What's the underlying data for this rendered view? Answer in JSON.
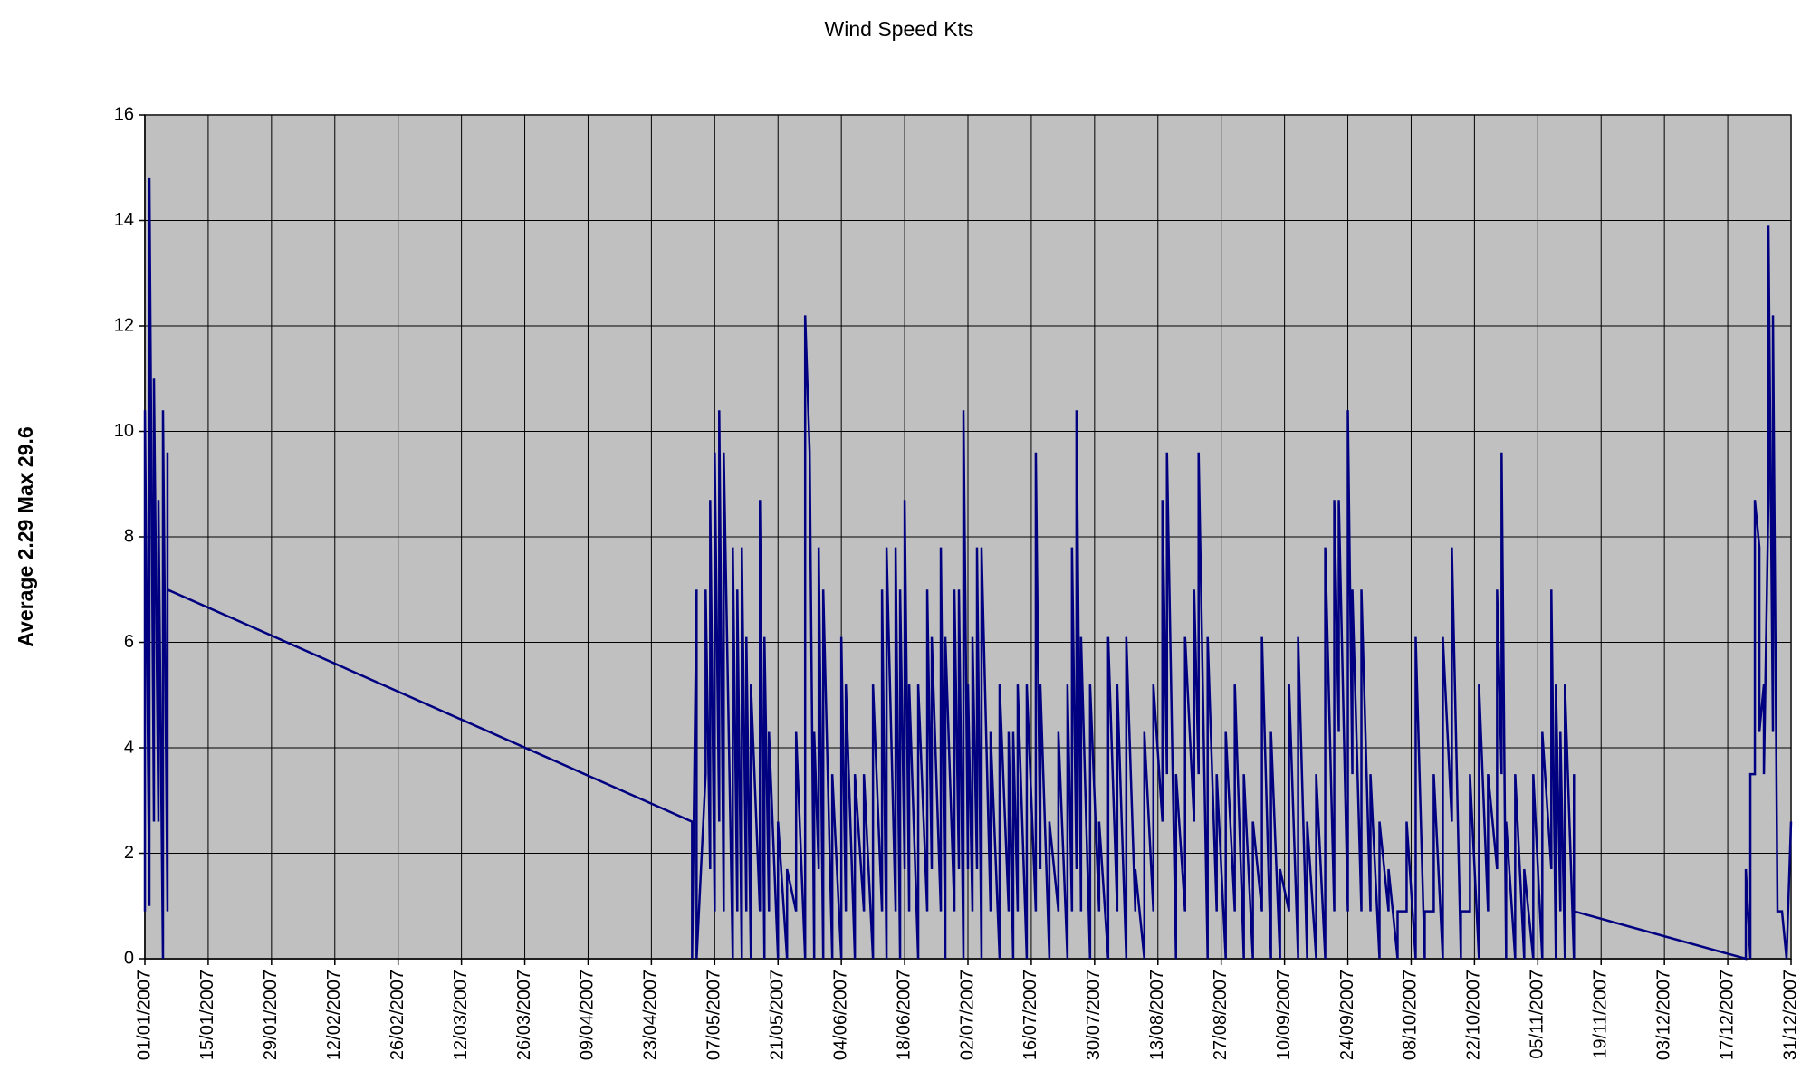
{
  "chart_data": {
    "type": "line",
    "title": "Wind Speed Kts",
    "y_label": "Average 2.29 Max 29.6",
    "xlim": [
      "01/01/2007",
      "31/12/2007"
    ],
    "xticks": [
      "01/01/2007",
      "15/01/2007",
      "29/01/2007",
      "12/02/2007",
      "26/02/2007",
      "12/03/2007",
      "26/03/2007",
      "09/04/2007",
      "23/04/2007",
      "07/05/2007",
      "21/05/2007",
      "04/06/2007",
      "18/06/2007",
      "02/07/2007",
      "16/07/2007",
      "30/07/2007",
      "13/08/2007",
      "27/08/2007",
      "10/09/2007",
      "24/09/2007",
      "08/10/2007",
      "22/10/2007",
      "05/11/2007",
      "19/11/2007",
      "03/12/2007",
      "17/12/2007",
      "31/12/2007"
    ],
    "ylim": [
      0,
      16
    ],
    "yticks": [
      0,
      2,
      4,
      6,
      8,
      10,
      12,
      14,
      16
    ],
    "grid": true,
    "background": "#c0c0c0",
    "x": [
      "01/01/2007",
      "01/01/2007",
      "02/01/2007",
      "02/01/2007",
      "03/01/2007",
      "03/01/2007",
      "04/01/2007",
      "04/01/2007",
      "05/01/2007",
      "05/01/2007",
      "06/01/2007",
      "06/01/2007",
      "06/01/2007",
      "02/05/2007",
      "02/05/2007",
      "03/05/2007",
      "03/05/2007",
      "05/05/2007",
      "05/05/2007",
      "06/05/2007",
      "06/05/2007",
      "07/05/2007",
      "07/05/2007",
      "08/05/2007",
      "08/05/2007",
      "09/05/2007",
      "09/05/2007",
      "11/05/2007",
      "11/05/2007",
      "12/05/2007",
      "12/05/2007",
      "13/05/2007",
      "13/05/2007",
      "14/05/2007",
      "14/05/2007",
      "15/05/2007",
      "15/05/2007",
      "17/05/2007",
      "17/05/2007",
      "18/05/2007",
      "18/05/2007",
      "19/05/2007",
      "19/05/2007",
      "21/05/2007",
      "21/05/2007",
      "23/05/2007",
      "23/05/2007",
      "25/05/2007",
      "25/05/2007",
      "27/05/2007",
      "27/05/2007",
      "28/05/2007",
      "29/05/2007",
      "29/05/2007",
      "30/05/2007",
      "30/05/2007",
      "31/05/2007",
      "31/05/2007",
      "02/06/2007",
      "02/06/2007",
      "04/06/2007",
      "04/06/2007",
      "05/06/2007",
      "05/06/2007",
      "07/06/2007",
      "07/06/2007",
      "09/06/2007",
      "09/06/2007",
      "11/06/2007",
      "11/06/2007",
      "13/06/2007",
      "13/06/2007",
      "14/06/2007",
      "14/06/2007",
      "16/06/2007",
      "16/06/2007",
      "17/06/2007",
      "17/06/2007",
      "18/06/2007",
      "18/06/2007",
      "19/06/2007",
      "19/06/2007",
      "21/06/2007",
      "21/06/2007",
      "23/06/2007",
      "23/06/2007",
      "24/06/2007",
      "24/06/2007",
      "26/06/2007",
      "26/06/2007",
      "27/06/2007",
      "27/06/2007",
      "29/06/2007",
      "29/06/2007",
      "30/06/2007",
      "30/06/2007",
      "01/07/2007",
      "01/07/2007",
      "02/07/2007",
      "02/07/2007",
      "03/07/2007",
      "03/07/2007",
      "04/07/2007",
      "04/07/2007",
      "05/07/2007",
      "05/07/2007",
      "07/07/2007",
      "07/07/2007",
      "09/07/2007",
      "09/07/2007",
      "11/07/2007",
      "11/07/2007",
      "12/07/2007",
      "12/07/2007",
      "13/07/2007",
      "13/07/2007",
      "15/07/2007",
      "15/07/2007",
      "17/07/2007",
      "17/07/2007",
      "18/07/2007",
      "18/07/2007",
      "20/07/2007",
      "20/07/2007",
      "22/07/2007",
      "22/07/2007",
      "24/07/2007",
      "24/07/2007",
      "25/07/2007",
      "25/07/2007",
      "26/07/2007",
      "26/07/2007",
      "27/07/2007",
      "27/07/2007",
      "29/07/2007",
      "29/07/2007",
      "31/07/2007",
      "31/07/2007",
      "02/08/2007",
      "02/08/2007",
      "04/08/2007",
      "04/08/2007",
      "06/08/2007",
      "06/08/2007",
      "08/08/2007",
      "08/08/2007",
      "10/08/2007",
      "10/08/2007",
      "12/08/2007",
      "12/08/2007",
      "14/08/2007",
      "14/08/2007",
      "15/08/2007",
      "15/08/2007",
      "17/08/2007",
      "17/08/2007",
      "19/08/2007",
      "19/08/2007",
      "21/08/2007",
      "21/08/2007",
      "22/08/2007",
      "22/08/2007",
      "24/08/2007",
      "24/08/2007",
      "26/08/2007",
      "26/08/2007",
      "28/08/2007",
      "28/08/2007",
      "30/08/2007",
      "30/08/2007",
      "01/09/2007",
      "01/09/2007",
      "03/09/2007",
      "03/09/2007",
      "05/09/2007",
      "05/09/2007",
      "07/09/2007",
      "07/09/2007",
      "09/09/2007",
      "09/09/2007",
      "11/09/2007",
      "11/09/2007",
      "13/09/2007",
      "13/09/2007",
      "15/09/2007",
      "15/09/2007",
      "17/09/2007",
      "17/09/2007",
      "19/09/2007",
      "19/09/2007",
      "21/09/2007",
      "21/09/2007",
      "22/09/2007",
      "22/09/2007",
      "24/09/2007",
      "24/09/2007",
      "25/09/2007",
      "25/09/2007",
      "27/09/2007",
      "27/09/2007",
      "29/09/2007",
      "29/09/2007",
      "01/10/2007",
      "01/10/2007",
      "03/10/2007",
      "03/10/2007",
      "05/10/2007",
      "05/10/2007",
      "07/10/2007",
      "07/10/2007",
      "09/10/2007",
      "09/10/2007",
      "11/10/2007",
      "11/10/2007",
      "13/10/2007",
      "13/10/2007",
      "15/10/2007",
      "15/10/2007",
      "17/10/2007",
      "17/10/2007",
      "19/10/2007",
      "19/10/2007",
      "21/10/2007",
      "21/10/2007",
      "23/10/2007",
      "23/10/2007",
      "25/10/2007",
      "25/10/2007",
      "27/10/2007",
      "27/10/2007",
      "28/10/2007",
      "28/10/2007",
      "29/10/2007",
      "29/10/2007",
      "31/10/2007",
      "31/10/2007",
      "02/11/2007",
      "02/11/2007",
      "04/11/2007",
      "04/11/2007",
      "06/11/2007",
      "06/11/2007",
      "08/11/2007",
      "08/11/2007",
      "09/11/2007",
      "09/11/2007",
      "10/11/2007",
      "10/11/2007",
      "11/11/2007",
      "11/11/2007",
      "13/11/2007",
      "13/11/2007",
      "13/11/2007",
      "21/12/2007",
      "21/12/2007",
      "22/12/2007",
      "22/12/2007",
      "23/12/2007",
      "23/12/2007",
      "24/12/2007",
      "24/12/2007",
      "25/12/2007",
      "25/12/2007",
      "26/12/2007",
      "26/12/2007",
      "27/12/2007",
      "27/12/2007",
      "28/12/2007",
      "29/12/2007",
      "30/12/2007",
      "31/12/2007"
    ],
    "series": [
      {
        "name": "Wind Speed",
        "color": "#000080",
        "values": [
          0.9,
          10.4,
          1.0,
          14.8,
          2.6,
          11.0,
          2.6,
          8.7,
          0,
          10.4,
          0.9,
          9.6,
          7.0,
          2.6,
          0,
          7.0,
          0,
          3.5,
          7.0,
          1.7,
          8.7,
          0.9,
          9.6,
          2.6,
          10.4,
          0.9,
          9.6,
          0,
          7.8,
          0.9,
          7.0,
          0,
          7.8,
          0.9,
          6.1,
          0,
          5.2,
          0.9,
          8.7,
          0,
          6.1,
          0.9,
          4.3,
          0,
          2.6,
          0,
          1.7,
          0.9,
          4.3,
          0,
          12.2,
          9.6,
          0,
          4.3,
          1.7,
          7.8,
          0,
          7.0,
          0,
          3.5,
          0,
          6.1,
          0.9,
          5.2,
          0,
          3.5,
          0.9,
          3.5,
          0,
          5.2,
          0.9,
          7.0,
          0,
          7.8,
          0.9,
          7.8,
          0,
          7.0,
          1.7,
          8.7,
          0.9,
          5.2,
          0,
          5.2,
          0.9,
          7.0,
          1.7,
          6.1,
          0.9,
          7.8,
          0,
          6.1,
          0.9,
          7.0,
          1.7,
          7.0,
          0,
          10.4,
          1.7,
          5.2,
          0.9,
          6.1,
          1.7,
          7.8,
          0,
          7.8,
          0.9,
          4.3,
          0,
          5.2,
          0.9,
          4.3,
          0,
          4.3,
          0.9,
          5.2,
          0,
          5.2,
          0.9,
          9.6,
          1.7,
          5.2,
          0,
          2.6,
          0.9,
          4.3,
          0,
          5.2,
          0.9,
          7.8,
          1.7,
          10.4,
          0.9,
          6.1,
          0,
          5.2,
          0.9,
          2.6,
          0,
          6.1,
          0.9,
          5.2,
          0,
          6.1,
          0.9,
          1.7,
          0,
          4.3,
          0.9,
          5.2,
          2.6,
          8.7,
          3.5,
          9.6,
          0,
          3.5,
          0.9,
          6.1,
          2.6,
          7.0,
          3.5,
          9.6,
          0,
          6.1,
          0.9,
          3.5,
          0,
          4.3,
          0.9,
          5.2,
          0,
          3.5,
          0,
          2.6,
          0.9,
          6.1,
          0,
          4.3,
          0,
          1.7,
          0.9,
          5.2,
          0,
          6.1,
          0,
          2.6,
          0,
          3.5,
          0,
          7.8,
          0.9,
          8.7,
          4.3,
          8.7,
          0.9,
          10.4,
          3.5,
          7.0,
          0.9,
          7.0,
          0.9,
          3.5,
          0,
          2.6,
          0.9,
          1.7,
          0,
          0.9,
          0.9,
          2.6,
          0,
          6.1,
          0,
          0.9,
          0.9,
          3.5,
          0,
          6.1,
          2.6,
          7.8,
          0,
          0.9,
          0.9,
          3.5,
          0,
          5.2,
          0.9,
          3.5,
          1.7,
          7.0,
          3.5,
          9.6,
          0,
          2.6,
          0,
          3.5,
          0,
          1.7,
          0,
          3.5,
          0,
          4.3,
          1.7,
          7.0,
          0,
          5.2,
          0.9,
          4.3,
          0,
          5.2,
          0,
          3.5,
          0.9,
          0,
          1.7,
          0,
          3.5,
          3.5,
          8.7,
          7.8,
          4.3,
          5.2,
          3.5,
          8.7,
          13.9,
          4.3,
          12.2,
          0.9,
          0.9,
          0,
          2.6
        ]
      }
    ]
  }
}
